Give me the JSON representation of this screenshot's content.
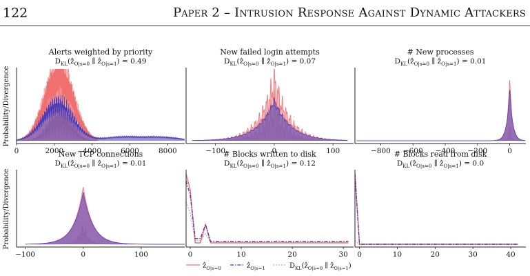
{
  "header": {
    "page_number": "122",
    "running_title": "Paper 2 – Intrusion Response Against Dynamic Attackers"
  },
  "ylabel": "Probability/Divergence",
  "legend": [
    {
      "key": "s0",
      "label": "ẑ",
      "sub": "O|s=0",
      "color": "#f07070",
      "dash": ""
    },
    {
      "key": "s1",
      "label": "ẑ",
      "sub": "O|s=1",
      "color": "#4a3ab8",
      "dash": "5,2,1.5,2"
    },
    {
      "key": "dkl",
      "label": "D_KL(ẑ_O|s=0 ∥ ẑ_O|s=1)",
      "color": "#b0b0b0",
      "dash": "2,2"
    }
  ],
  "colors": {
    "s0": "#f07070",
    "s1": "#4a3ab8",
    "dkl": "#b0b0b0"
  },
  "chart_data": [
    {
      "id": "alerts",
      "type": "area",
      "title": "Alerts weighted by priority",
      "subtitle": "D_KL(ẑ_O|s=0 ∥ ẑ_O|s=1) = 0.49",
      "xlim": [
        0,
        8900
      ],
      "ylim": [
        0,
        1
      ],
      "xticks": [
        0,
        2000,
        4000,
        6000,
        8000
      ],
      "xticklabels": [
        "0",
        "2000",
        "4000",
        "6000",
        "8000"
      ],
      "series": [
        {
          "key": "s0",
          "shape": "gauss",
          "peaks": [
            {
              "mu": 2250,
              "sigma": 750,
              "amp": 0.92
            }
          ],
          "jitter": 0.45,
          "cycles": 180,
          "x0": 0,
          "x1": 4300
        },
        {
          "key": "s1",
          "shape": "gauss",
          "peaks": [
            {
              "mu": 2200,
              "sigma": 800,
              "amp": 0.52
            },
            {
              "mu": 5500,
              "sigma": 900,
              "amp": 0.05
            },
            {
              "mu": 7600,
              "sigma": 1000,
              "amp": 0.05
            }
          ],
          "jitter": 0.35,
          "cycles": 260,
          "x0": 0,
          "x1": 8900
        },
        {
          "key": "dkl",
          "shape": "gauss",
          "peaks": [
            {
              "mu": 2300,
              "sigma": 600,
              "amp": 0.3
            }
          ],
          "jitter": 0.8,
          "cycles": 200,
          "x0": 0,
          "x1": 4200
        }
      ]
    },
    {
      "id": "failed_logins",
      "type": "area",
      "title": "New failed login attempts",
      "subtitle": "D_KL(ẑ_O|s=0 ∥ ẑ_O|s=1) = 0.07",
      "xlim": [
        -150,
        135
      ],
      "ylim": [
        0,
        1
      ],
      "xticks": [
        -100,
        0,
        100
      ],
      "xticklabels": [
        "−100",
        "0",
        "100"
      ],
      "series": [
        {
          "key": "s0",
          "shape": "laplace",
          "peaks": [
            {
              "mu": 0,
              "sigma": 25,
              "amp": 0.85
            }
          ],
          "jitter": 0.35,
          "cycles": 40,
          "x0": -140,
          "x1": 125
        },
        {
          "key": "s1",
          "shape": "laplace",
          "peaks": [
            {
              "mu": 0,
              "sigma": 28,
              "amp": 0.58
            }
          ],
          "jitter": 0.1,
          "cycles": 40,
          "x0": -140,
          "x1": 125
        },
        {
          "key": "dkl",
          "shape": "laplace",
          "peaks": [
            {
              "mu": 0,
              "sigma": 20,
              "amp": 0.45
            }
          ],
          "jitter": 0.8,
          "cycles": 40,
          "x0": -140,
          "x1": 125
        }
      ]
    },
    {
      "id": "processes",
      "type": "area",
      "title": "# New processes",
      "subtitle": "D_KL(ẑ_O|s=0 ∥ ẑ_O|s=1) = 0.01",
      "xlim": [
        -960,
        100
      ],
      "ylim": [
        0,
        1
      ],
      "xticks": [
        -800,
        -600,
        -400,
        -200,
        0
      ],
      "xticklabels": [
        "−800",
        "−600",
        "−400",
        "−200",
        "0"
      ],
      "series": [
        {
          "key": "s0",
          "shape": "laplace",
          "peaks": [
            {
              "mu": 0,
              "sigma": 16,
              "amp": 0.9
            }
          ],
          "jitter": 0.05,
          "cycles": 30,
          "x0": -950,
          "x1": 95
        },
        {
          "key": "s1",
          "shape": "laplace",
          "peaks": [
            {
              "mu": 0,
              "sigma": 18,
              "amp": 0.75
            }
          ],
          "jitter": 0.05,
          "cycles": 30,
          "x0": -950,
          "x1": 95
        },
        {
          "key": "dkl",
          "shape": "laplace",
          "peaks": [
            {
              "mu": 0,
              "sigma": 10,
              "amp": 0.18
            }
          ],
          "jitter": 0.6,
          "cycles": 30,
          "x0": -950,
          "x1": 95
        }
      ]
    },
    {
      "id": "tcp",
      "type": "area",
      "title": "New TCP connections",
      "subtitle": "D_KL(ẑ_O|s=0 ∥ ẑ_O|s=1) = 0.01",
      "xlim": [
        -115,
        175
      ],
      "ylim": [
        0,
        1
      ],
      "xticks": [
        -100,
        0,
        100
      ],
      "xticklabels": [
        "−100",
        "0",
        "100"
      ],
      "series": [
        {
          "key": "s0",
          "shape": "laplace",
          "peaks": [
            {
              "mu": 0,
              "sigma": 16,
              "amp": 0.82
            }
          ],
          "jitter": 0,
          "cycles": 40,
          "x0": -100,
          "x1": 175
        },
        {
          "key": "s1",
          "shape": "laplace",
          "peaks": [
            {
              "mu": 0,
              "sigma": 17,
              "amp": 0.74
            }
          ],
          "jitter": 0,
          "cycles": 40,
          "x0": -100,
          "x1": 175
        },
        {
          "key": "dkl",
          "shape": "laplace",
          "peaks": [
            {
              "mu": 0,
              "sigma": 9,
              "amp": 0.22
            }
          ],
          "jitter": 0.5,
          "cycles": 40,
          "x0": -100,
          "x1": 175
        }
      ]
    },
    {
      "id": "blocks_written",
      "type": "line",
      "title": "# Blocks written to disk",
      "subtitle": "D_KL(ẑ_O|s=0 ∥ ẑ_O|s=1) = 0.12",
      "xlim": [
        -0.8,
        32
      ],
      "ylim": [
        0,
        1
      ],
      "xticks": [
        0,
        10,
        20,
        30
      ],
      "xticklabels": [
        "0",
        "10",
        "20",
        "30"
      ],
      "series": [
        {
          "key": "s0",
          "points": [
            [
              -0.8,
              1.0
            ],
            [
              0,
              0.78
            ],
            [
              1,
              0.02
            ],
            [
              2,
              0.02
            ],
            [
              3,
              0.28
            ],
            [
              4,
              0.02
            ],
            [
              31,
              0.02
            ]
          ]
        },
        {
          "key": "s1",
          "points": [
            [
              -0.8,
              0.9
            ],
            [
              0,
              0.7
            ],
            [
              1,
              0.08
            ],
            [
              2,
              0.08
            ],
            [
              3,
              0.28
            ],
            [
              4,
              0.04
            ],
            [
              31,
              0.04
            ]
          ]
        },
        {
          "key": "dkl",
          "points": [
            [
              -0.8,
              0.6
            ],
            [
              0,
              0.45
            ],
            [
              1,
              0.05
            ],
            [
              2,
              0.05
            ],
            [
              3,
              0.15
            ],
            [
              4,
              0.03
            ],
            [
              31,
              0.03
            ]
          ]
        }
      ]
    },
    {
      "id": "blocks_read",
      "type": "line",
      "title": "# Blocks read from disk",
      "subtitle": "D_KL(ẑ_O|s=0 ∥ ẑ_O|s=1) = 0.0",
      "xlim": [
        -1.2,
        44
      ],
      "ylim": [
        0,
        1
      ],
      "xticks": [
        0,
        10,
        20,
        30,
        40
      ],
      "xticklabels": [
        "0",
        "10",
        "20",
        "30",
        "40"
      ],
      "series": [
        {
          "key": "s0",
          "points": [
            [
              -1.2,
              1.0
            ],
            [
              0,
              0.0
            ],
            [
              42,
              0.0
            ]
          ]
        },
        {
          "key": "s1",
          "points": [
            [
              -1.2,
              1.0
            ],
            [
              0,
              0.0
            ],
            [
              42,
              0.0
            ]
          ]
        },
        {
          "key": "dkl",
          "points": [
            [
              -1.2,
              0.05
            ],
            [
              0,
              0.0
            ],
            [
              42,
              0.0
            ]
          ]
        }
      ]
    }
  ]
}
